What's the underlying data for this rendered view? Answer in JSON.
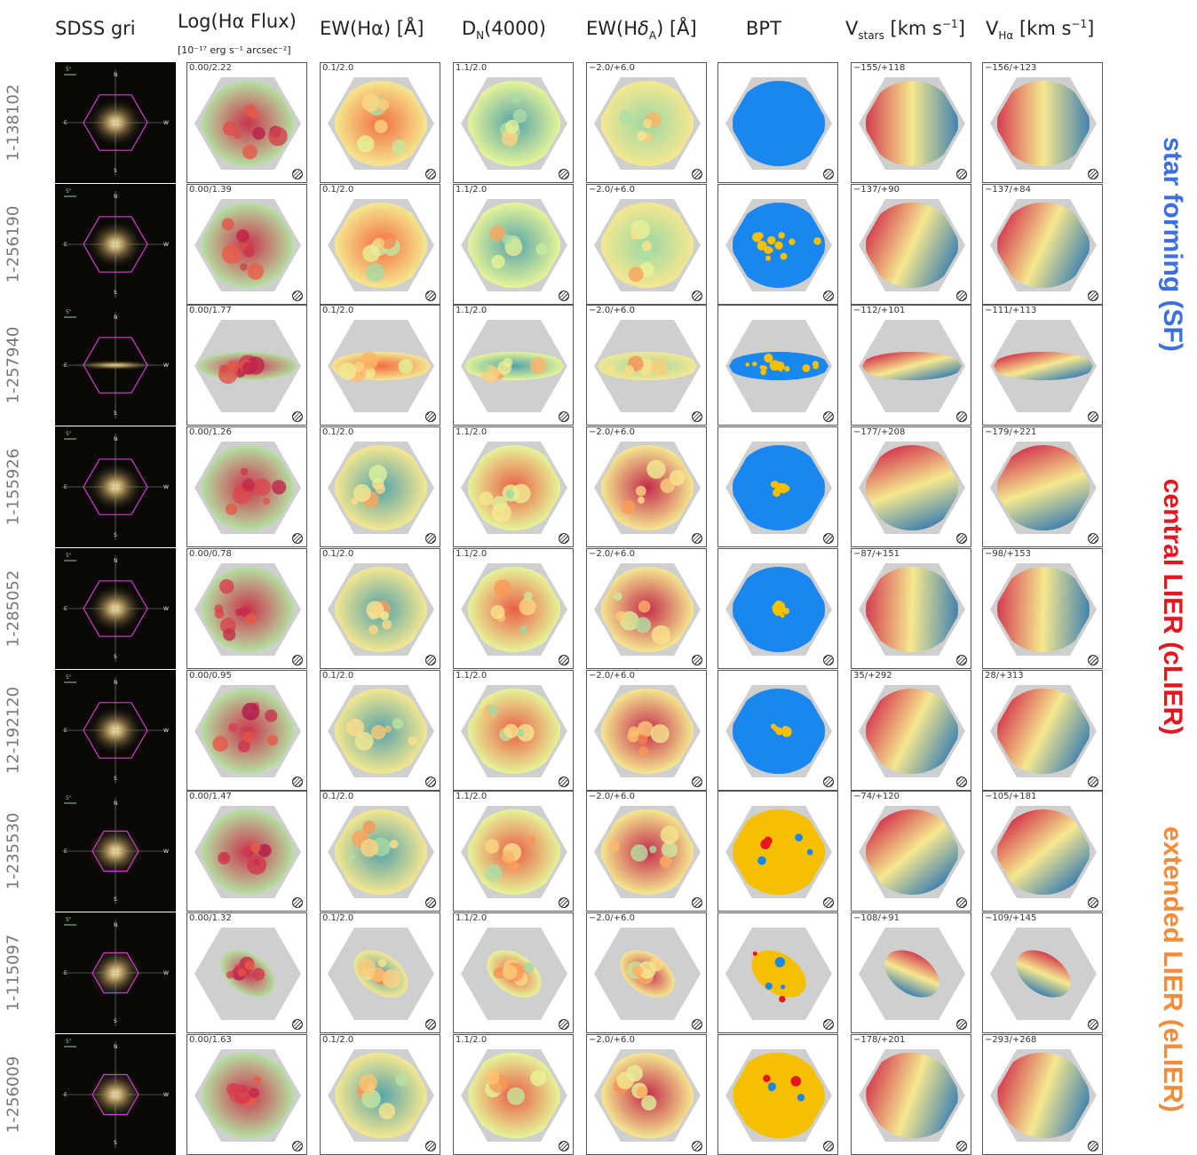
{
  "headers": {
    "sdss": "SDSS gri",
    "flux": "Log(Hα Flux)",
    "flux_unit": "[10⁻¹⁷ erg s⁻¹ arcsec⁻²]",
    "ewha": "EW(Hα) [Å]",
    "dn4000": "D_N(4000)",
    "ewhd": "EW(Hδ_A) [Å]",
    "bpt": "BPT",
    "vstars": "V_stars [km s⁻¹]",
    "vha": "V_Hα [km s⁻¹]"
  },
  "categories": [
    {
      "label": "star forming (SF)",
      "color": "#3d6fe0"
    },
    {
      "label": "central LIER (cLIER)",
      "color": "#e8141e"
    },
    {
      "label": "extended LIER (eLIER)",
      "color": "#f28c3a"
    }
  ],
  "compass": {
    "n": "N",
    "s": "S",
    "e": "E",
    "w": "W",
    "scale": "5\""
  },
  "colors": {
    "nodata": "#cfcfcf",
    "sf": "#1a86ef",
    "lier": "#f4c000",
    "seyfert": "#e8141e",
    "hexagon": "#d43cd4"
  },
  "rows": [
    {
      "id": "1-138102",
      "type": "sf",
      "flux": "0.00/2.22",
      "ewha": "0.1/2.0",
      "dn": "1.1/2.0",
      "ewhd": "-2.0/+6.0",
      "vstars": "-155/+118",
      "vha": "-156/+123"
    },
    {
      "id": "1-256190",
      "type": "sf",
      "flux": "0.00/1.39",
      "ewha": "0.1/2.0",
      "dn": "1.1/2.0",
      "ewhd": "-2.0/+6.0",
      "vstars": "-137/+90",
      "vha": "-137/+84"
    },
    {
      "id": "1-257940",
      "type": "sf",
      "flux": "0.00/1.77",
      "ewha": "0.1/2.0",
      "dn": "1.1/2.0",
      "ewhd": "-2.0/+6.0",
      "vstars": "-112/+101",
      "vha": "-111/+113"
    },
    {
      "id": "1-155926",
      "type": "clier",
      "flux": "0.00/1.26",
      "ewha": "0.1/2.0",
      "dn": "1.1/2.0",
      "ewhd": "-2.0/+6.0",
      "vstars": "-177/+208",
      "vha": "-179/+221"
    },
    {
      "id": "1-285052",
      "type": "clier",
      "flux": "0.00/0.78",
      "ewha": "0.1/2.0",
      "dn": "1.1/2.0",
      "ewhd": "-2.0/+6.0",
      "vstars": "-87/+151",
      "vha": "-98/+153"
    },
    {
      "id": "12-192120",
      "type": "clier",
      "flux": "0.00/0.95",
      "ewha": "0.1/2.0",
      "dn": "1.1/2.0",
      "ewhd": "-2.0/+6.0",
      "vstars": "35/+292",
      "vha": "28/+313"
    },
    {
      "id": "1-235530",
      "type": "elier",
      "flux": "0.00/1.47",
      "ewha": "0.1/2.0",
      "dn": "1.1/2.0",
      "ewhd": "-2.0/+6.0",
      "vstars": "-74/+120",
      "vha": "-105/+181"
    },
    {
      "id": "1-115097",
      "type": "elier",
      "flux": "0.00/1.32",
      "ewha": "0.1/2.0",
      "dn": "1.1/2.0",
      "ewhd": "-2.0/+6.0",
      "vstars": "-108/+91",
      "vha": "-109/+145"
    },
    {
      "id": "1-256009",
      "type": "elier",
      "flux": "0.00/1.63",
      "ewha": "0.1/2.0",
      "dn": "1.1/2.0",
      "ewhd": "-2.0/+6.0",
      "vstars": "-178/+201",
      "vha": "-293/+268"
    }
  ]
}
